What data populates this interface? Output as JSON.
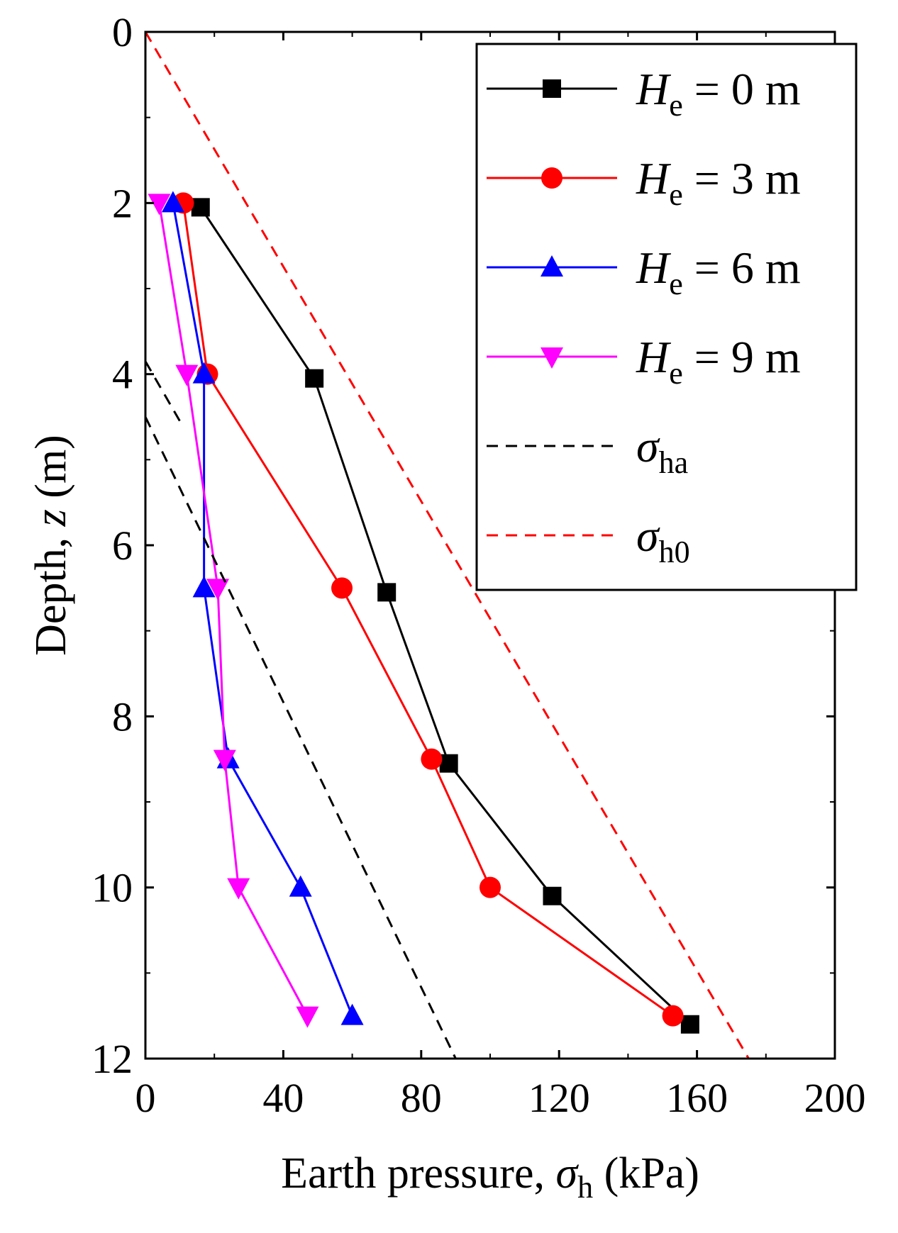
{
  "chart_data": {
    "type": "line",
    "orientation": "depth-profile",
    "xlabel": {
      "prefix": "Earth pressure, ",
      "symbol": "σ",
      "sub": "h",
      "suffix": " (kPa)"
    },
    "ylabel": {
      "prefix": "Depth, ",
      "symbol": "z",
      "suffix": " (m)"
    },
    "xlim": [
      0,
      200
    ],
    "ylim": [
      0,
      12
    ],
    "y_inverted": true,
    "xticks": [
      0,
      40,
      80,
      120,
      160,
      200
    ],
    "yticks": [
      0,
      2,
      4,
      6,
      8,
      10,
      12
    ],
    "grid": false,
    "legend_position": "top-right",
    "series": [
      {
        "name": "He = 0 m",
        "symbol": "H",
        "sub": "e",
        "rest": " = 0 m",
        "color": "#000000",
        "marker": "square",
        "style": "solid",
        "points": [
          [
            16,
            2.05
          ],
          [
            49,
            4.05
          ],
          [
            70,
            6.55
          ],
          [
            88,
            8.55
          ],
          [
            118,
            10.1
          ],
          [
            158,
            11.6
          ]
        ]
      },
      {
        "name": "He = 3 m",
        "symbol": "H",
        "sub": "e",
        "rest": " = 3 m",
        "color": "#ff0000",
        "marker": "circle",
        "style": "solid",
        "points": [
          [
            11,
            2.0
          ],
          [
            18,
            4.0
          ],
          [
            57,
            6.5
          ],
          [
            83,
            8.5
          ],
          [
            100,
            10.0
          ],
          [
            153,
            11.5
          ]
        ]
      },
      {
        "name": "He = 6 m",
        "symbol": "H",
        "sub": "e",
        "rest": " = 6 m",
        "color": "#0000ff",
        "marker": "triangle-up",
        "style": "solid",
        "points": [
          [
            8,
            2.0
          ],
          [
            17,
            4.0
          ],
          [
            17,
            6.5
          ],
          [
            24,
            8.5
          ],
          [
            45,
            10.0
          ],
          [
            60,
            11.5
          ]
        ]
      },
      {
        "name": "He = 9 m",
        "symbol": "H",
        "sub": "e",
        "rest": " = 9 m",
        "color": "#ff00ff",
        "marker": "triangle-down",
        "style": "solid",
        "points": [
          [
            4,
            2.0
          ],
          [
            12,
            4.0
          ],
          [
            21,
            6.5
          ],
          [
            23,
            8.5
          ],
          [
            27,
            10.0
          ],
          [
            47,
            11.5
          ]
        ]
      },
      {
        "name": "σha",
        "symbol": "σ",
        "sub": "ha",
        "rest": "",
        "color": "#000000",
        "marker": "none",
        "style": "dashed",
        "segments": [
          [
            [
              0,
              3.85
            ],
            [
              10,
              4.55
            ]
          ],
          [
            [
              0,
              4.5
            ],
            [
              90,
              12.0
            ]
          ]
        ]
      },
      {
        "name": "σh0",
        "symbol": "σ",
        "sub": "h0",
        "rest": "",
        "color": "#ff0000",
        "marker": "none",
        "style": "dashed",
        "segments": [
          [
            [
              0,
              0.0
            ],
            [
              175,
              12.0
            ]
          ]
        ]
      }
    ]
  }
}
